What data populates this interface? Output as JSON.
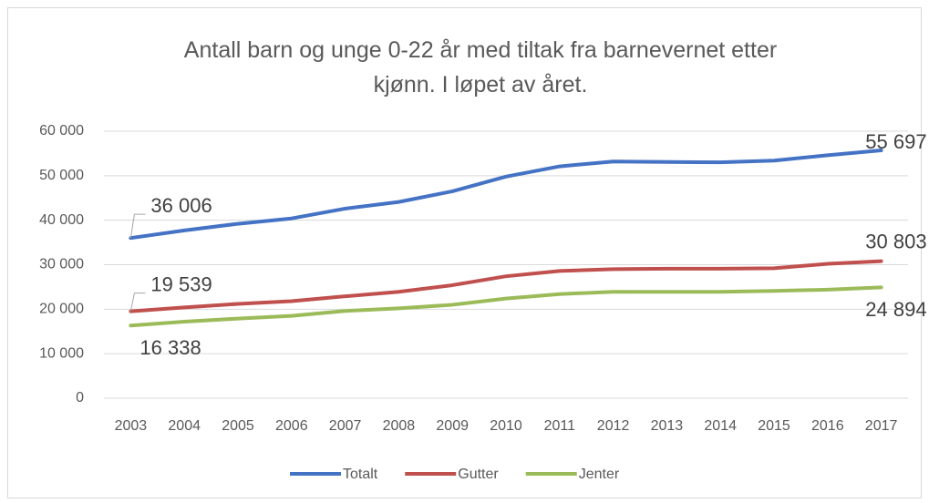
{
  "chart_data": {
    "type": "line",
    "title": "Antall barn og unge 0-22 år med tiltak fra barnevernet etter kjønn. I løpet av året.",
    "categories": [
      "2003",
      "2004",
      "2005",
      "2006",
      "2007",
      "2008",
      "2009",
      "2010",
      "2011",
      "2012",
      "2013",
      "2014",
      "2015",
      "2016",
      "2017"
    ],
    "series": [
      {
        "name": "Totalt",
        "color": "#4472c4",
        "values": [
          36006,
          37700,
          39200,
          40400,
          42600,
          44100,
          46500,
          49800,
          52100,
          53200,
          53100,
          53000,
          53400,
          54600,
          55697
        ],
        "value_labels": [
          "36 006",
          null,
          null,
          null,
          null,
          null,
          null,
          null,
          null,
          null,
          null,
          null,
          null,
          null,
          "55 697"
        ]
      },
      {
        "name": "Gutter",
        "color": "#c0504d",
        "values": [
          19539,
          20400,
          21200,
          21800,
          22900,
          23900,
          25400,
          27400,
          28600,
          29000,
          29100,
          29100,
          29200,
          30200,
          30803
        ],
        "value_labels": [
          "19 539",
          null,
          null,
          null,
          null,
          null,
          null,
          null,
          null,
          null,
          null,
          null,
          null,
          null,
          "30 803"
        ]
      },
      {
        "name": "Jenter",
        "color": "#9bbb59",
        "values": [
          16338,
          17200,
          17900,
          18500,
          19600,
          20200,
          21000,
          22400,
          23400,
          23900,
          23900,
          23900,
          24100,
          24400,
          24894
        ],
        "value_labels": [
          "16 338",
          null,
          null,
          null,
          null,
          null,
          null,
          null,
          null,
          null,
          null,
          null,
          null,
          null,
          "24 894"
        ]
      }
    ],
    "ylim": [
      0,
      60000
    ],
    "yticks": [
      0,
      {
        "value": 10000,
        "label": "10 000"
      },
      {
        "value": 20000,
        "label": "20 000"
      },
      {
        "value": 30000,
        "label": "30 000"
      },
      {
        "value": 40000,
        "label": "40 000"
      },
      {
        "value": 50000,
        "label": "50 000"
      },
      {
        "value": 60000,
        "label": "60 000"
      }
    ],
    "grid": true,
    "legend": "bottom"
  }
}
